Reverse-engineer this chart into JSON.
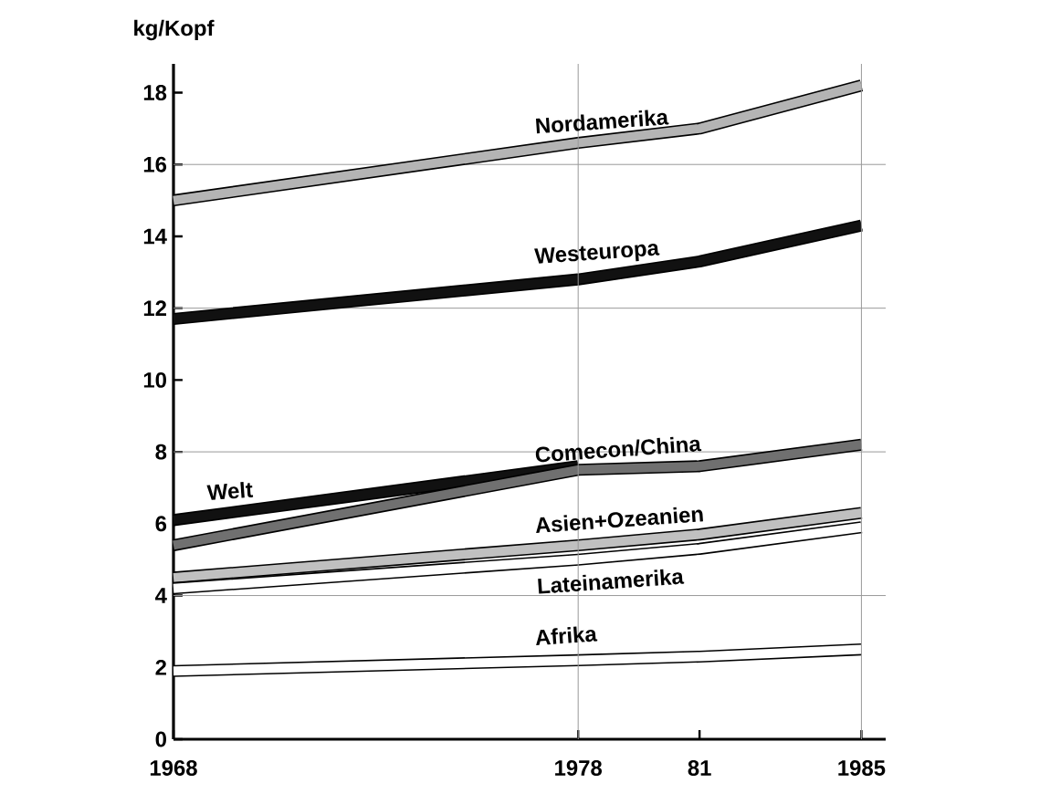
{
  "chart_data": {
    "type": "line",
    "ylabel": "kg/Kopf",
    "x": [
      1968,
      1978,
      1981,
      1985
    ],
    "xlim": [
      1968,
      1985.6
    ],
    "ylim": [
      0,
      18.8
    ],
    "xticks": [
      1968,
      1978,
      {
        "value": 1981,
        "label": "81"
      },
      1985
    ],
    "yticks": [
      0,
      2,
      4,
      6,
      8,
      10,
      12,
      14,
      16,
      18
    ],
    "series": [
      {
        "name": "Nordamerika",
        "color": "#b4b4b4",
        "values": [
          15.0,
          16.6,
          17.0,
          18.2
        ]
      },
      {
        "name": "Westeuropa",
        "color": "#111111",
        "values": [
          11.7,
          12.8,
          13.3,
          14.3
        ]
      },
      {
        "name": "Welt",
        "color": "#111111",
        "values": [
          6.1,
          7.6,
          null,
          null
        ]
      },
      {
        "name": "Comecon/China",
        "color": "#707070",
        "values": [
          5.4,
          7.5,
          7.6,
          8.2
        ]
      },
      {
        "name": "Asien+Ozeanien",
        "color": "#c0c0c0",
        "values": [
          4.5,
          5.4,
          5.7,
          6.3
        ]
      },
      {
        "name": "Lateinamerika",
        "color": "#ffffff",
        "values": [
          4.2,
          5.0,
          5.3,
          5.9
        ]
      },
      {
        "name": "Afrika",
        "color": "#ffffff",
        "values": [
          1.9,
          2.2,
          2.3,
          2.5
        ]
      }
    ],
    "ref_lines": [
      {
        "axis": "y",
        "value": 4,
        "color": "#999999"
      },
      {
        "axis": "y",
        "value": 8,
        "color": "#999999"
      },
      {
        "axis": "y",
        "value": 12,
        "color": "#999999"
      },
      {
        "axis": "y",
        "value": 16,
        "color": "#999999"
      },
      {
        "axis": "x",
        "value": 1978,
        "color": "#999999"
      },
      {
        "axis": "x",
        "value": 1985,
        "color": "#999999"
      }
    ],
    "grid": false,
    "marker": "none",
    "line_style": "solid"
  }
}
